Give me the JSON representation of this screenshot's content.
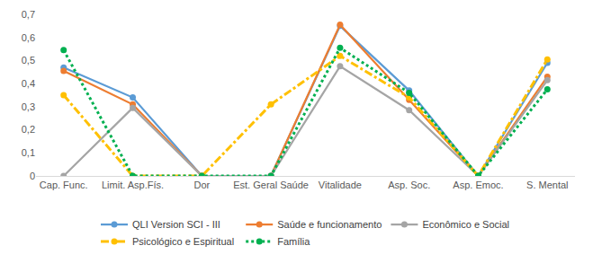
{
  "chart_data": {
    "type": "line",
    "categories": [
      "Cap. Func.",
      "Limit. Asp.Fís.",
      "Dor",
      "Est. Geral Saúde",
      "Vitalidade",
      "Asp. Soc.",
      "Asp. Emoc.",
      "S. Mental"
    ],
    "series": [
      {
        "name": "QLI Version SCI - III",
        "color": "#5b9bd5",
        "line_style": "solid",
        "marker": "circle",
        "values": [
          0.47,
          0.34,
          0,
          0,
          0.65,
          0.37,
          0,
          0.49
        ]
      },
      {
        "name": "Saúde e funcionamento",
        "color": "#ed7d31",
        "line_style": "solid",
        "marker": "circle",
        "values": [
          0.455,
          0.31,
          0,
          0,
          0.655,
          0.33,
          0,
          0.43
        ]
      },
      {
        "name": "Econômico e Social",
        "color": "#a5a5a5",
        "line_style": "solid",
        "marker": "circle",
        "values": [
          0,
          0.295,
          0,
          0,
          0.475,
          0.285,
          0,
          0.415
        ]
      },
      {
        "name": "Psicológico e Espiritual",
        "color": "#ffc000",
        "line_style": "dashdot",
        "marker": "circle",
        "values": [
          0.35,
          0,
          0,
          0.31,
          0.52,
          0.34,
          0,
          0.505
        ]
      },
      {
        "name": "Família",
        "color": "#00b050",
        "line_style": "dot",
        "marker": "circle",
        "values": [
          0.545,
          0,
          0,
          0,
          0.555,
          0.36,
          0,
          0.375
        ]
      }
    ],
    "ylim": [
      0,
      0.7
    ],
    "yticks": [
      0,
      {
        "value": 0.1,
        "label": "0,1"
      },
      {
        "value": 0.2,
        "label": "0,2"
      },
      {
        "value": 0.3,
        "label": "0,3"
      },
      {
        "value": 0.4,
        "label": "0,4"
      },
      {
        "value": 0.5,
        "label": "0,5"
      },
      {
        "value": 0.6,
        "label": "0,6"
      },
      {
        "value": 0.7,
        "label": "0,7"
      }
    ],
    "grid": false,
    "legend": "bottom"
  }
}
